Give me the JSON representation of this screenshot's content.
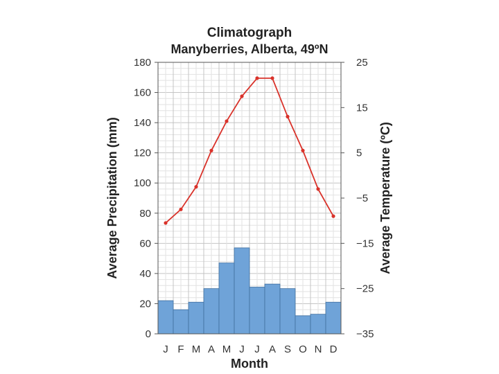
{
  "chart_data": {
    "type": "bar",
    "title": "Climatograph",
    "subtitle": "Manyberries, Alberta, 49ºN",
    "xlabel": "Month",
    "ylabel": "Average Precipitation (mm)",
    "y2label": "Average Temperature (ºC)",
    "categories": [
      "J",
      "F",
      "M",
      "A",
      "M",
      "J",
      "J",
      "A",
      "S",
      "O",
      "N",
      "D"
    ],
    "ylim": [
      0,
      180
    ],
    "y2lim": [
      -35,
      25
    ],
    "yticks": [
      "0",
      "20",
      "40",
      "60",
      "80",
      "100",
      "120",
      "140",
      "160",
      "180"
    ],
    "y2ticks": [
      "−35",
      "−25",
      "−15",
      "−5",
      "5",
      "15",
      "25"
    ],
    "grid": true,
    "series": [
      {
        "name": "Average Precipitation (mm)",
        "type": "bar",
        "axis": "left",
        "color": "#6fa3d8",
        "values": [
          22,
          16,
          21,
          30,
          47,
          57,
          31,
          33,
          30,
          12,
          13,
          21
        ]
      },
      {
        "name": "Average Temperature (ºC)",
        "type": "line",
        "axis": "right",
        "color": "#d9322a",
        "values": [
          -10.5,
          -7.5,
          -2.5,
          5.5,
          12.0,
          17.5,
          21.5,
          21.5,
          13.0,
          5.5,
          -3.0,
          -9.0
        ]
      }
    ]
  }
}
